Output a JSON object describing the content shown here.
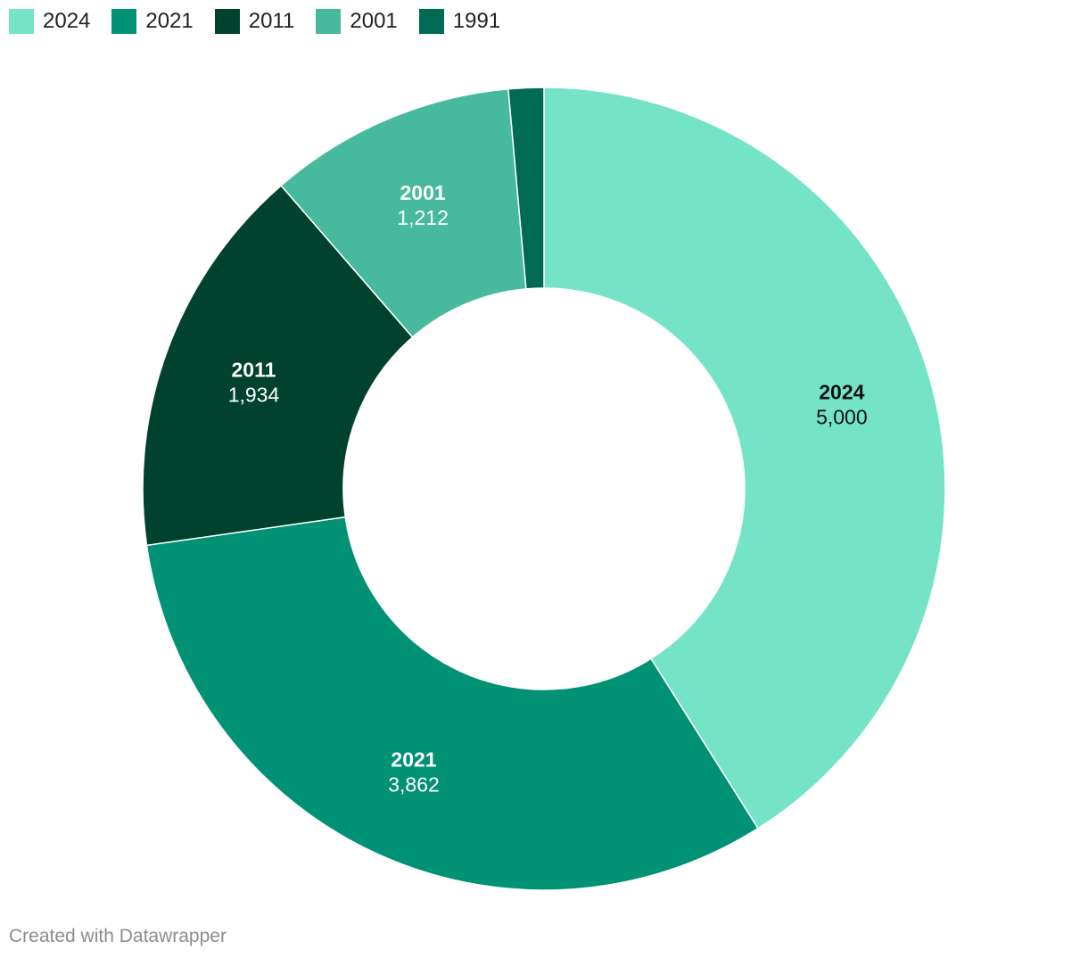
{
  "chart_data": {
    "type": "pie",
    "donut": true,
    "categories": [
      "2024",
      "2021",
      "2011",
      "2001",
      "1991"
    ],
    "values": [
      5000,
      3862,
      1934,
      1212,
      173
    ],
    "value_labels": [
      "5,000",
      "3,862",
      "1,934",
      "1,212",
      ""
    ],
    "colors": [
      "#74e3c6",
      "#019175",
      "#00422e",
      "#47b99d",
      "#006b52"
    ],
    "label_colors": [
      "#111111",
      "#ffffff",
      "#ffffff",
      "#ffffff",
      "#ffffff"
    ],
    "show_label": [
      true,
      true,
      true,
      true,
      false
    ],
    "legend_position": "top-left",
    "start_angle": "12 o'clock",
    "direction": "clockwise"
  },
  "footer": {
    "credit": "Created with Datawrapper"
  }
}
